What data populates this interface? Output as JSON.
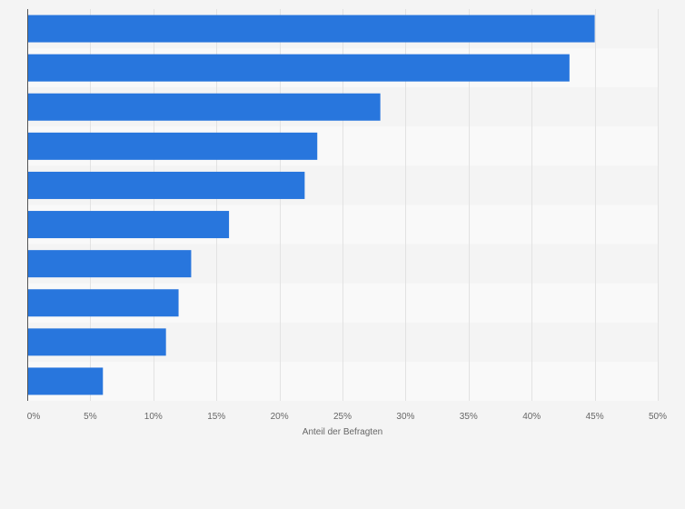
{
  "chart_data": {
    "type": "bar",
    "orientation": "horizontal",
    "categories": [
      "",
      "",
      "",
      "",
      "",
      "",
      "",
      "",
      "",
      ""
    ],
    "values": [
      45,
      43,
      28,
      23,
      22,
      16,
      13,
      12,
      11,
      6
    ],
    "xlabel": "Anteil der Befragten",
    "ylabel": "",
    "xlim": [
      0,
      50
    ],
    "tick_values": [
      0,
      5,
      10,
      15,
      20,
      25,
      30,
      35,
      40,
      45,
      50
    ],
    "tick_labels": [
      "0%",
      "5%",
      "10%",
      "15%",
      "20%",
      "25%",
      "30%",
      "35%",
      "40%",
      "45%",
      "50%"
    ],
    "grid": true,
    "colors": {
      "bar": "#2876dd",
      "band_a": "#f4f4f4",
      "band_b": "#f9f9f9",
      "grid": "#e2e2e2",
      "axis": "#555555"
    }
  }
}
